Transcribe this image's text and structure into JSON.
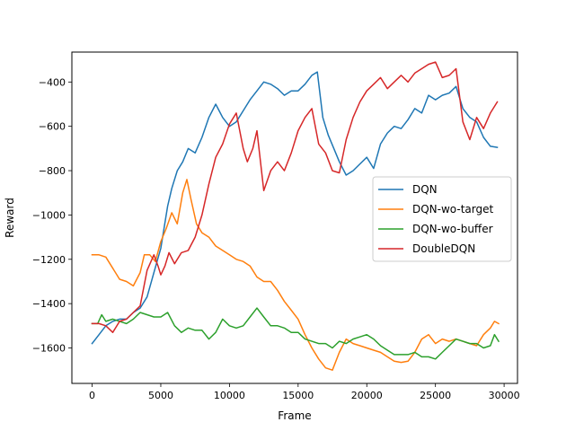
{
  "chart_data": {
    "type": "line",
    "title": "",
    "xlabel": "Frame",
    "ylabel": "Reward",
    "xlim": [
      -1475,
      30975
    ],
    "ylim": [
      -1760,
      -265
    ],
    "xticks": [
      0,
      5000,
      10000,
      15000,
      20000,
      25000,
      30000
    ],
    "xtick_labels": [
      "0",
      "5000",
      "10000",
      "15000",
      "20000",
      "25000",
      "30000"
    ],
    "yticks": [
      -1600,
      -1400,
      -1200,
      -1000,
      -800,
      -600,
      -400
    ],
    "ytick_labels": [
      "−1600",
      "−1400",
      "−1200",
      "−1000",
      "−800",
      "−600",
      "−400"
    ],
    "grid": false,
    "legend_position": "center-right",
    "series": [
      {
        "name": "DQN",
        "color": "#1f77b4",
        "points": [
          [
            0,
            -1580
          ],
          [
            500,
            -1540
          ],
          [
            1000,
            -1500
          ],
          [
            1500,
            -1480
          ],
          [
            2000,
            -1470
          ],
          [
            2500,
            -1470
          ],
          [
            3000,
            -1440
          ],
          [
            3500,
            -1420
          ],
          [
            4000,
            -1370
          ],
          [
            4500,
            -1260
          ],
          [
            5000,
            -1150
          ],
          [
            5500,
            -960
          ],
          [
            5800,
            -880
          ],
          [
            6200,
            -800
          ],
          [
            6600,
            -760
          ],
          [
            7000,
            -700
          ],
          [
            7500,
            -720
          ],
          [
            8000,
            -650
          ],
          [
            8500,
            -560
          ],
          [
            9000,
            -500
          ],
          [
            9500,
            -560
          ],
          [
            10000,
            -600
          ],
          [
            10500,
            -580
          ],
          [
            11000,
            -530
          ],
          [
            11500,
            -480
          ],
          [
            12000,
            -440
          ],
          [
            12500,
            -400
          ],
          [
            13000,
            -410
          ],
          [
            13500,
            -430
          ],
          [
            14000,
            -460
          ],
          [
            14500,
            -440
          ],
          [
            15000,
            -440
          ],
          [
            15500,
            -410
          ],
          [
            16000,
            -370
          ],
          [
            16400,
            -355
          ],
          [
            16800,
            -560
          ],
          [
            17200,
            -640
          ],
          [
            17600,
            -700
          ],
          [
            18000,
            -760
          ],
          [
            18500,
            -820
          ],
          [
            19000,
            -800
          ],
          [
            19500,
            -770
          ],
          [
            20000,
            -740
          ],
          [
            20500,
            -790
          ],
          [
            21000,
            -680
          ],
          [
            21500,
            -630
          ],
          [
            22000,
            -600
          ],
          [
            22500,
            -610
          ],
          [
            23000,
            -570
          ],
          [
            23500,
            -520
          ],
          [
            24000,
            -540
          ],
          [
            24500,
            -460
          ],
          [
            25000,
            -480
          ],
          [
            25500,
            -460
          ],
          [
            26000,
            -450
          ],
          [
            26500,
            -420
          ],
          [
            27000,
            -520
          ],
          [
            27500,
            -560
          ],
          [
            28000,
            -580
          ],
          [
            28500,
            -650
          ],
          [
            29000,
            -690
          ],
          [
            29500,
            -695
          ]
        ]
      },
      {
        "name": "DQN-wo-target",
        "color": "#ff7f0e",
        "points": [
          [
            0,
            -1180
          ],
          [
            500,
            -1180
          ],
          [
            1000,
            -1190
          ],
          [
            1500,
            -1240
          ],
          [
            2000,
            -1290
          ],
          [
            2500,
            -1300
          ],
          [
            3000,
            -1320
          ],
          [
            3500,
            -1260
          ],
          [
            3800,
            -1180
          ],
          [
            4200,
            -1180
          ],
          [
            4600,
            -1210
          ],
          [
            5000,
            -1120
          ],
          [
            5400,
            -1060
          ],
          [
            5800,
            -990
          ],
          [
            6200,
            -1040
          ],
          [
            6600,
            -900
          ],
          [
            6900,
            -840
          ],
          [
            7200,
            -930
          ],
          [
            7600,
            -1040
          ],
          [
            8000,
            -1080
          ],
          [
            8500,
            -1100
          ],
          [
            9000,
            -1140
          ],
          [
            9500,
            -1160
          ],
          [
            10000,
            -1180
          ],
          [
            10500,
            -1200
          ],
          [
            11000,
            -1210
          ],
          [
            11500,
            -1230
          ],
          [
            12000,
            -1280
          ],
          [
            12500,
            -1300
          ],
          [
            13000,
            -1300
          ],
          [
            13500,
            -1340
          ],
          [
            14000,
            -1390
          ],
          [
            14500,
            -1430
          ],
          [
            15000,
            -1470
          ],
          [
            15500,
            -1540
          ],
          [
            16000,
            -1600
          ],
          [
            16500,
            -1650
          ],
          [
            17000,
            -1690
          ],
          [
            17500,
            -1700
          ],
          [
            18000,
            -1620
          ],
          [
            18500,
            -1560
          ],
          [
            19000,
            -1580
          ],
          [
            19500,
            -1590
          ],
          [
            20000,
            -1600
          ],
          [
            20500,
            -1610
          ],
          [
            21000,
            -1620
          ],
          [
            21500,
            -1640
          ],
          [
            22000,
            -1660
          ],
          [
            22500,
            -1665
          ],
          [
            23000,
            -1660
          ],
          [
            23500,
            -1620
          ],
          [
            24000,
            -1560
          ],
          [
            24500,
            -1540
          ],
          [
            25000,
            -1580
          ],
          [
            25500,
            -1560
          ],
          [
            26000,
            -1570
          ],
          [
            26500,
            -1560
          ],
          [
            27000,
            -1570
          ],
          [
            27500,
            -1580
          ],
          [
            28000,
            -1590
          ],
          [
            28500,
            -1540
          ],
          [
            29000,
            -1510
          ],
          [
            29300,
            -1480
          ],
          [
            29600,
            -1490
          ]
        ]
      },
      {
        "name": "DQN-wo-buffer",
        "color": "#2ca02c",
        "points": [
          [
            0,
            -1490
          ],
          [
            400,
            -1490
          ],
          [
            700,
            -1450
          ],
          [
            1000,
            -1480
          ],
          [
            1500,
            -1470
          ],
          [
            2000,
            -1480
          ],
          [
            2500,
            -1490
          ],
          [
            3000,
            -1470
          ],
          [
            3500,
            -1440
          ],
          [
            4000,
            -1450
          ],
          [
            4500,
            -1460
          ],
          [
            5000,
            -1460
          ],
          [
            5500,
            -1440
          ],
          [
            6000,
            -1500
          ],
          [
            6500,
            -1530
          ],
          [
            7000,
            -1510
          ],
          [
            7500,
            -1520
          ],
          [
            8000,
            -1520
          ],
          [
            8500,
            -1560
          ],
          [
            9000,
            -1530
          ],
          [
            9500,
            -1470
          ],
          [
            10000,
            -1500
          ],
          [
            10500,
            -1510
          ],
          [
            11000,
            -1500
          ],
          [
            11500,
            -1460
          ],
          [
            12000,
            -1420
          ],
          [
            12500,
            -1460
          ],
          [
            13000,
            -1500
          ],
          [
            13500,
            -1500
          ],
          [
            14000,
            -1510
          ],
          [
            14500,
            -1530
          ],
          [
            15000,
            -1530
          ],
          [
            15500,
            -1560
          ],
          [
            16000,
            -1570
          ],
          [
            16500,
            -1580
          ],
          [
            17000,
            -1580
          ],
          [
            17500,
            -1600
          ],
          [
            18000,
            -1570
          ],
          [
            18500,
            -1580
          ],
          [
            19000,
            -1560
          ],
          [
            19500,
            -1550
          ],
          [
            20000,
            -1540
          ],
          [
            20500,
            -1560
          ],
          [
            21000,
            -1590
          ],
          [
            21500,
            -1610
          ],
          [
            22000,
            -1630
          ],
          [
            22500,
            -1630
          ],
          [
            23000,
            -1630
          ],
          [
            23500,
            -1620
          ],
          [
            24000,
            -1640
          ],
          [
            24500,
            -1640
          ],
          [
            25000,
            -1650
          ],
          [
            25500,
            -1620
          ],
          [
            26000,
            -1590
          ],
          [
            26500,
            -1560
          ],
          [
            27000,
            -1570
          ],
          [
            27500,
            -1580
          ],
          [
            28000,
            -1580
          ],
          [
            28500,
            -1600
          ],
          [
            29000,
            -1590
          ],
          [
            29300,
            -1540
          ],
          [
            29600,
            -1570
          ]
        ]
      },
      {
        "name": "DoubleDQN",
        "color": "#d62728",
        "points": [
          [
            0,
            -1490
          ],
          [
            500,
            -1490
          ],
          [
            1000,
            -1500
          ],
          [
            1500,
            -1530
          ],
          [
            2000,
            -1480
          ],
          [
            2500,
            -1470
          ],
          [
            3000,
            -1440
          ],
          [
            3500,
            -1410
          ],
          [
            4000,
            -1250
          ],
          [
            4500,
            -1180
          ],
          [
            4800,
            -1230
          ],
          [
            5000,
            -1270
          ],
          [
            5300,
            -1230
          ],
          [
            5600,
            -1170
          ],
          [
            6000,
            -1220
          ],
          [
            6500,
            -1170
          ],
          [
            7000,
            -1160
          ],
          [
            7500,
            -1100
          ],
          [
            8000,
            -1000
          ],
          [
            8500,
            -860
          ],
          [
            9000,
            -740
          ],
          [
            9500,
            -680
          ],
          [
            10000,
            -590
          ],
          [
            10500,
            -540
          ],
          [
            11000,
            -700
          ],
          [
            11300,
            -760
          ],
          [
            11700,
            -700
          ],
          [
            12000,
            -620
          ],
          [
            12500,
            -890
          ],
          [
            13000,
            -800
          ],
          [
            13500,
            -760
          ],
          [
            14000,
            -800
          ],
          [
            14500,
            -720
          ],
          [
            15000,
            -620
          ],
          [
            15500,
            -560
          ],
          [
            16000,
            -520
          ],
          [
            16500,
            -680
          ],
          [
            17000,
            -720
          ],
          [
            17500,
            -800
          ],
          [
            18000,
            -810
          ],
          [
            18500,
            -660
          ],
          [
            19000,
            -560
          ],
          [
            19500,
            -490
          ],
          [
            20000,
            -440
          ],
          [
            20500,
            -410
          ],
          [
            21000,
            -380
          ],
          [
            21500,
            -430
          ],
          [
            22000,
            -400
          ],
          [
            22500,
            -370
          ],
          [
            23000,
            -400
          ],
          [
            23500,
            -360
          ],
          [
            24000,
            -340
          ],
          [
            24500,
            -320
          ],
          [
            25000,
            -310
          ],
          [
            25500,
            -380
          ],
          [
            26000,
            -370
          ],
          [
            26500,
            -340
          ],
          [
            27000,
            -580
          ],
          [
            27500,
            -660
          ],
          [
            28000,
            -560
          ],
          [
            28500,
            -610
          ],
          [
            29000,
            -540
          ],
          [
            29500,
            -490
          ]
        ]
      }
    ]
  }
}
